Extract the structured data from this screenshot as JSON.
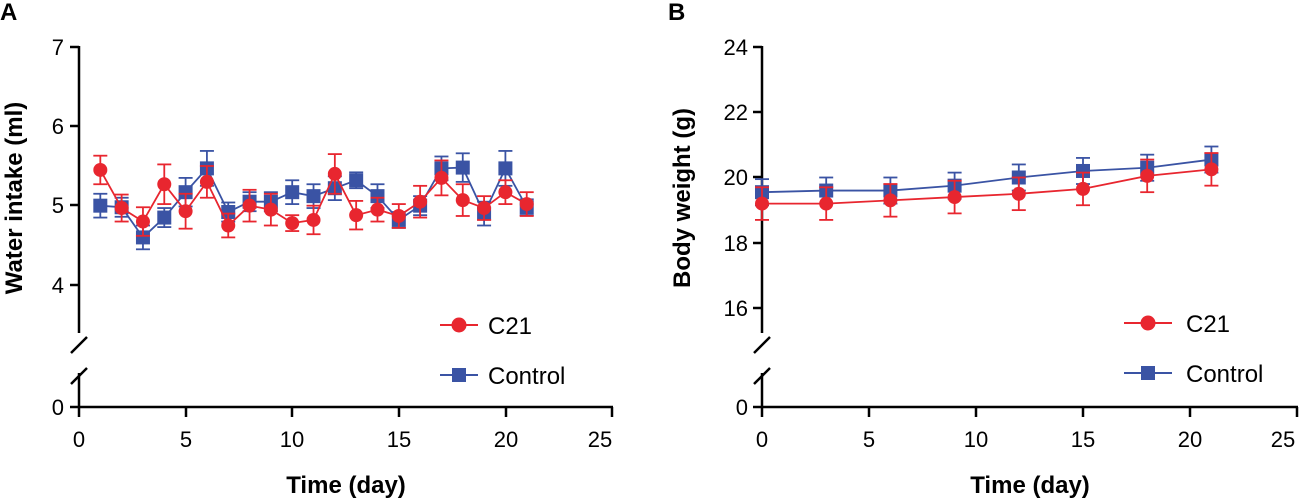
{
  "colors": {
    "c21": "#e8262f",
    "control": "#3a53a4",
    "axis": "#000000"
  },
  "chart_data": [
    {
      "type": "line",
      "panel_label": "A",
      "xlabel": "Time (day)",
      "ylabel": "Water intake (ml)",
      "xlim": [
        0,
        25
      ],
      "x_ticks": [
        "0",
        "5",
        "10",
        "15",
        "20",
        "25"
      ],
      "ylim_upper": [
        3.6,
        7
      ],
      "ylim_lower": [
        0,
        0.3
      ],
      "y_ticks_upper": [
        "4",
        "5",
        "6",
        "7"
      ],
      "y_ticks_lower": [
        "0"
      ],
      "axis_break": true,
      "legend_position": "bottom-right",
      "series": [
        {
          "name": "C21",
          "marker": "circle",
          "x": [
            1,
            2,
            3,
            4,
            5,
            6,
            7,
            8,
            9,
            10,
            11,
            12,
            13,
            14,
            15,
            16,
            17,
            18,
            19,
            20,
            21
          ],
          "y": [
            5.45,
            4.97,
            4.8,
            5.27,
            4.93,
            5.3,
            4.75,
            5.0,
            4.95,
            4.78,
            4.82,
            5.4,
            4.88,
            4.95,
            4.87,
            5.05,
            5.35,
            5.07,
            4.97,
            5.17,
            5.02
          ],
          "err": [
            0.18,
            0.17,
            0.18,
            0.25,
            0.22,
            0.2,
            0.15,
            0.2,
            0.2,
            0.1,
            0.18,
            0.25,
            0.18,
            0.15,
            0.15,
            0.2,
            0.22,
            0.2,
            0.15,
            0.15,
            0.15
          ]
        },
        {
          "name": "Control",
          "marker": "square",
          "x": [
            1,
            2,
            3,
            4,
            5,
            6,
            7,
            8,
            9,
            10,
            11,
            12,
            13,
            14,
            15,
            16,
            17,
            18,
            19,
            20,
            21
          ],
          "y": [
            5.0,
            4.98,
            4.6,
            4.85,
            5.17,
            5.47,
            4.92,
            5.05,
            5.05,
            5.17,
            5.12,
            5.22,
            5.32,
            5.12,
            4.82,
            5.0,
            5.47,
            5.48,
            4.9,
            5.47,
            4.98
          ],
          "err": [
            0.15,
            0.12,
            0.15,
            0.12,
            0.18,
            0.22,
            0.12,
            0.12,
            0.12,
            0.15,
            0.15,
            0.15,
            0.1,
            0.15,
            0.1,
            0.12,
            0.15,
            0.18,
            0.15,
            0.22,
            0.1
          ]
        }
      ]
    },
    {
      "type": "line",
      "panel_label": "B",
      "xlabel": "Time (day)",
      "ylabel": "Body weight (g)",
      "xlim": [
        0,
        25
      ],
      "x_ticks": [
        "0",
        "5",
        "10",
        "15",
        "20",
        "25"
      ],
      "ylim_upper": [
        15.2,
        24
      ],
      "ylim_lower": [
        0,
        0.8
      ],
      "y_ticks_upper": [
        "16",
        "18",
        "20",
        "22",
        "24"
      ],
      "y_ticks_lower": [
        "0"
      ],
      "axis_break": true,
      "legend_position": "bottom-right",
      "series": [
        {
          "name": "C21",
          "marker": "circle",
          "x": [
            0,
            3,
            6,
            9,
            12,
            15,
            18,
            21
          ],
          "y": [
            19.2,
            19.2,
            19.3,
            19.4,
            19.5,
            19.65,
            20.05,
            20.25
          ],
          "err": [
            0.5,
            0.5,
            0.5,
            0.5,
            0.5,
            0.5,
            0.5,
            0.5
          ]
        },
        {
          "name": "Control",
          "marker": "square",
          "x": [
            0,
            3,
            6,
            9,
            12,
            15,
            18,
            21
          ],
          "y": [
            19.55,
            19.6,
            19.6,
            19.75,
            20.0,
            20.2,
            20.3,
            20.55
          ],
          "err": [
            0.4,
            0.4,
            0.4,
            0.4,
            0.4,
            0.4,
            0.4,
            0.4
          ]
        }
      ]
    }
  ]
}
